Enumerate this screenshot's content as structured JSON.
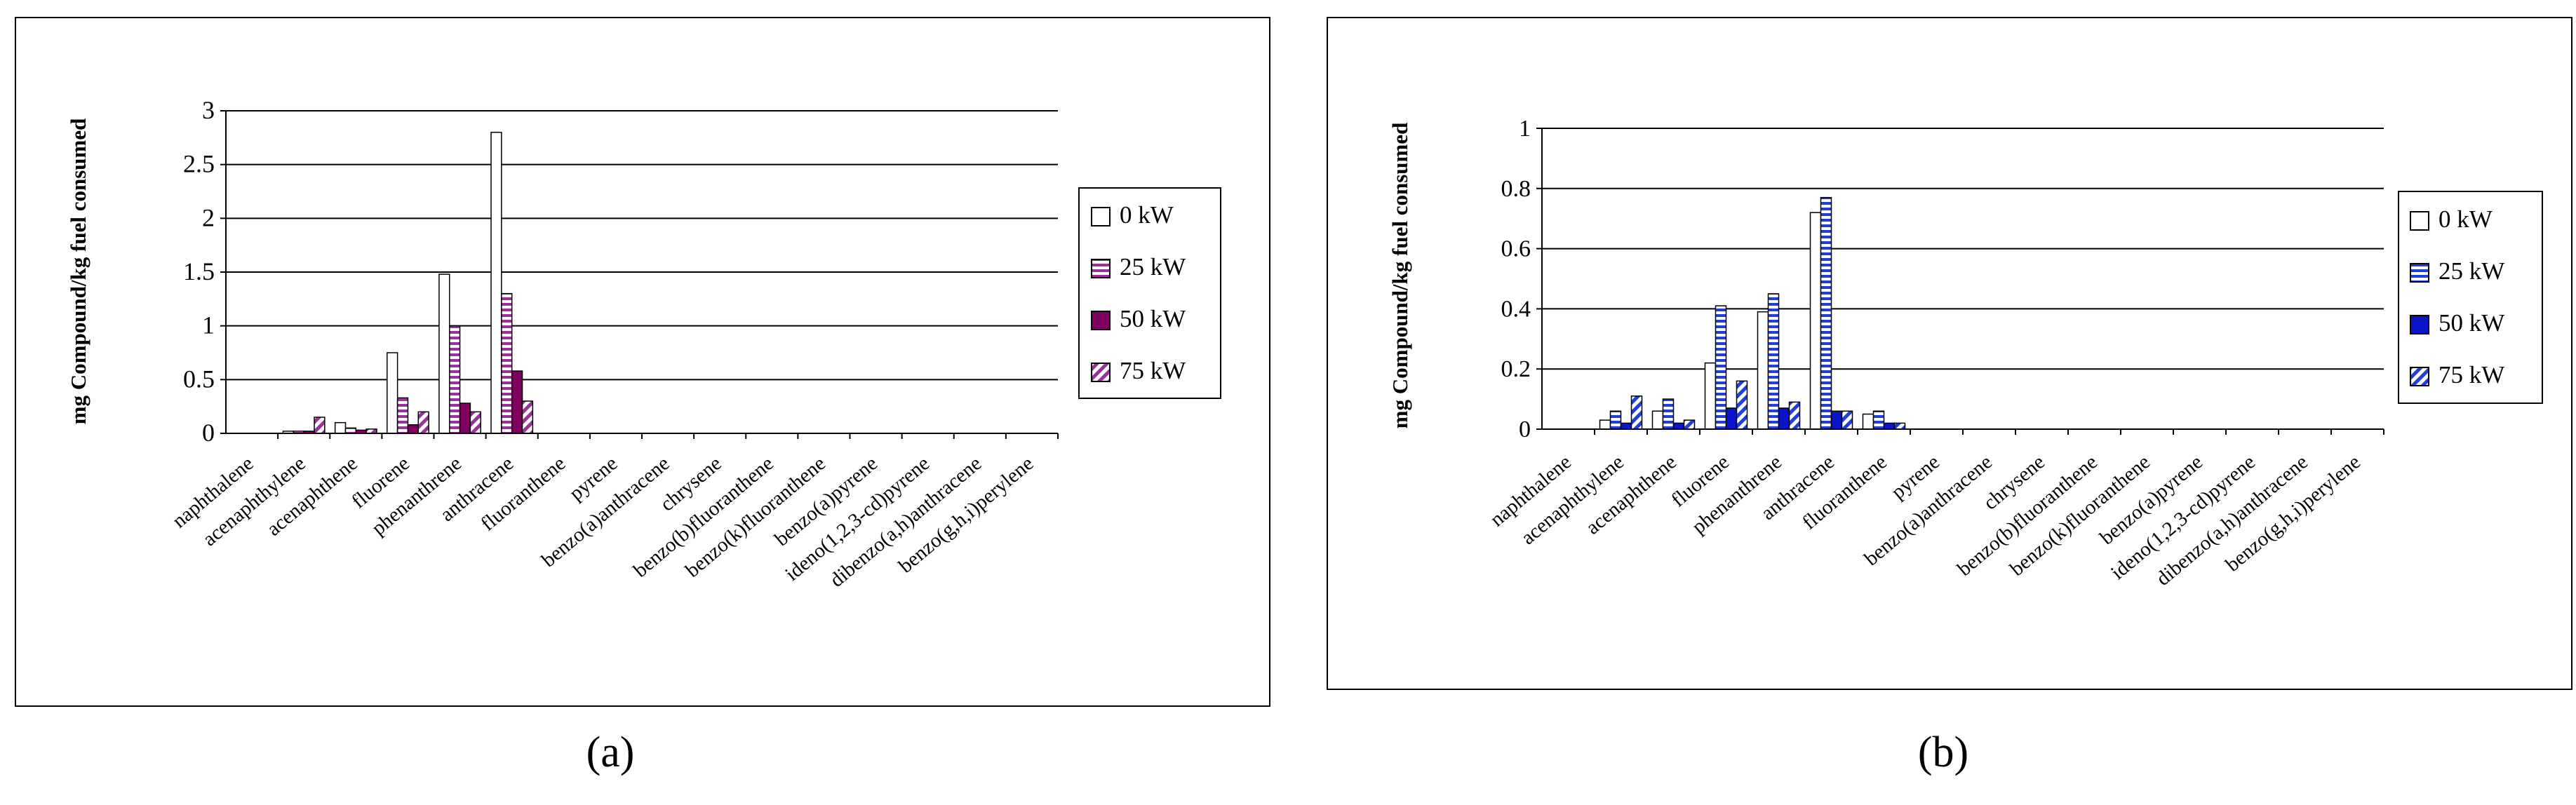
{
  "chart_data": [
    {
      "id": "a",
      "type": "bar",
      "panel_label": "(a)",
      "ylabel": "mg Compound/kg fuel consumed",
      "ylim": [
        0,
        3
      ],
      "yticks": [
        {
          "value": 0,
          "label": "0"
        },
        {
          "value": 0.5,
          "label": "0.5"
        },
        {
          "value": 1,
          "label": "1"
        },
        {
          "value": 1.5,
          "label": "1.5"
        },
        {
          "value": 2,
          "label": "2"
        },
        {
          "value": 2.5,
          "label": "2.5"
        },
        {
          "value": 3,
          "label": "3"
        }
      ],
      "categories": [
        "naphthalene",
        "acenaphthylene",
        "acenaphthene",
        "fluorene",
        "phenanthrene",
        "anthracene",
        "fluoranthene",
        "pyrene",
        "benzo(a)anthracene",
        "chrysene",
        "benzo(b)fluoranthene",
        "benzo(k)fluoranthene",
        "benzo(a)pyrene",
        "ideno(1,2,3-cd)pyrene",
        "dibenzo(a,h)anthracene",
        "benzo(g,h,i)perylene"
      ],
      "series": [
        {
          "name": "0 kW",
          "color": "#ffffff",
          "pattern": "open",
          "values": [
            0,
            0.02,
            0.1,
            0.75,
            1.48,
            2.8,
            0,
            0,
            0,
            0,
            0,
            0,
            0,
            0,
            0,
            0
          ]
        },
        {
          "name": "25 kW",
          "color": "#993399",
          "pattern": "hstripe",
          "values": [
            0,
            0.02,
            0.05,
            0.33,
            1.0,
            1.3,
            0,
            0,
            0,
            0,
            0,
            0,
            0,
            0,
            0,
            0
          ]
        },
        {
          "name": "50 kW",
          "color": "#800060",
          "pattern": "solid",
          "values": [
            0,
            0.02,
            0.03,
            0.08,
            0.28,
            0.58,
            0,
            0,
            0,
            0,
            0,
            0,
            0,
            0,
            0,
            0
          ]
        },
        {
          "name": "75 kW",
          "color": "#993399",
          "pattern": "diag",
          "values": [
            0,
            0.15,
            0.04,
            0.2,
            0.2,
            0.3,
            0,
            0,
            0,
            0,
            0,
            0,
            0,
            0,
            0,
            0
          ]
        }
      ]
    },
    {
      "id": "b",
      "type": "bar",
      "panel_label": "(b)",
      "ylabel": "mg Compound/kg fuel consumed",
      "ylim": [
        0,
        1
      ],
      "yticks": [
        {
          "value": 0,
          "label": "0"
        },
        {
          "value": 0.2,
          "label": "0.2"
        },
        {
          "value": 0.4,
          "label": "0.4"
        },
        {
          "value": 0.6,
          "label": "0.6"
        },
        {
          "value": 0.8,
          "label": "0.8"
        },
        {
          "value": 1,
          "label": "1"
        }
      ],
      "categories": [
        "naphthalene",
        "acenaphthylene",
        "acenaphthene",
        "fluorene",
        "phenanthrene",
        "anthracene",
        "fluoranthene",
        "pyrene",
        "benzo(a)anthracene",
        "chrysene",
        "benzo(b)fluoranthene",
        "benzo(k)fluoranthene",
        "benzo(a)pyrene",
        "ideno(1,2,3-cd)pyrene",
        "dibenzo(a,h)anthracene",
        "benzo(g,h,i)perylene"
      ],
      "series": [
        {
          "name": "0 kW",
          "color": "#ffffff",
          "pattern": "open",
          "values": [
            0,
            0.03,
            0.06,
            0.22,
            0.39,
            0.72,
            0.05,
            0,
            0,
            0,
            0,
            0,
            0,
            0,
            0,
            0
          ]
        },
        {
          "name": "25 kW",
          "color": "#1f3fd6",
          "pattern": "hstripe",
          "values": [
            0,
            0.06,
            0.1,
            0.41,
            0.45,
            0.77,
            0.06,
            0,
            0,
            0,
            0,
            0,
            0,
            0,
            0,
            0
          ]
        },
        {
          "name": "50 kW",
          "color": "#0a14c8",
          "pattern": "solid",
          "values": [
            0,
            0.02,
            0.02,
            0.07,
            0.07,
            0.06,
            0.02,
            0,
            0,
            0,
            0,
            0,
            0,
            0,
            0,
            0
          ]
        },
        {
          "name": "75 kW",
          "color": "#1f3fd6",
          "pattern": "diag",
          "values": [
            0,
            0.11,
            0.03,
            0.16,
            0.09,
            0.06,
            0.02,
            0,
            0,
            0,
            0,
            0,
            0,
            0,
            0,
            0
          ]
        }
      ]
    }
  ]
}
